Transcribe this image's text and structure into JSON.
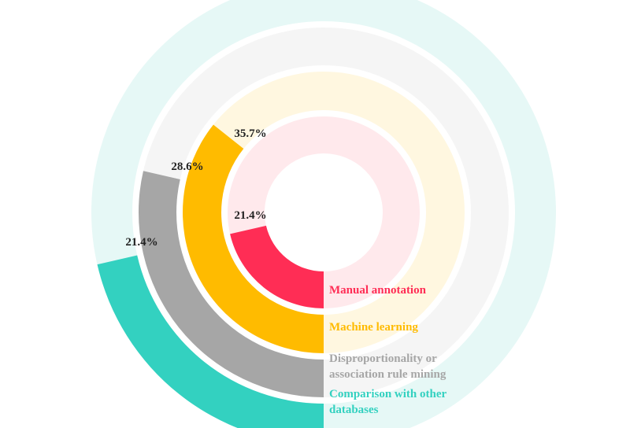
{
  "chart_data": {
    "type": "radial-bar",
    "series": [
      {
        "name": "Manual annotation",
        "value": 21.4,
        "label": "21.4%",
        "color": "#ff2d55",
        "track_color": "#ffe9ec"
      },
      {
        "name": "Machine learning",
        "value": 35.7,
        "label": "35.7%",
        "color": "#ffbb00",
        "track_color": "#fff7e0"
      },
      {
        "name": "Disproportionality or association rule mining",
        "value": 28.6,
        "label": "28.6%",
        "color": "#a6a6a6",
        "track_color": "#f5f5f5"
      },
      {
        "name": "Comparison with other databases",
        "value": 21.4,
        "label": "21.4%",
        "color": "#33d1c0",
        "track_color": "#e6f8f6"
      }
    ],
    "legend_lines": [
      [
        "Manual annotation"
      ],
      [
        "Machine learning"
      ],
      [
        "Disproportionality or",
        "association rule mining"
      ],
      [
        "Comparison with other",
        "databases"
      ]
    ],
    "max_value": 100,
    "direction": "clockwise",
    "start": "bottom"
  }
}
